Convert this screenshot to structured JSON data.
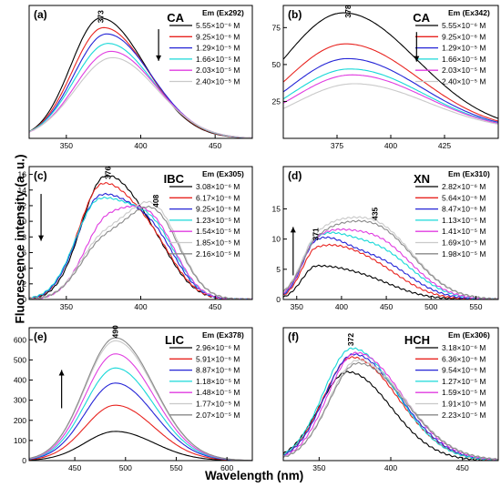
{
  "figure": {
    "ylabel": "Fluorescence intensity (a. u.)",
    "xlabel": "Wavelength (nm)"
  },
  "colors": {
    "series": [
      "#000000",
      "#e8231f",
      "#2424d6",
      "#18d8d8",
      "#e03ce0",
      "#c9c9c9",
      "#8a8a8a"
    ]
  },
  "chart_data": [
    {
      "type": "line",
      "panel": "(a)",
      "compound": "CA",
      "em_label": "Em (Ex292)",
      "xlim": [
        325,
        475
      ],
      "ylim": [
        0,
        420
      ],
      "xticks": [
        350,
        400,
        450
      ],
      "yticks": [],
      "annotations": [
        {
          "text": "373",
          "x": 373,
          "y": 385
        }
      ],
      "arrow": {
        "direction": "down",
        "x": 412,
        "y_from": 345,
        "y_to": 245
      },
      "series": [
        {
          "name": "5.55×10⁻⁶ M",
          "peak": 373,
          "amp": 380,
          "w_left": 20,
          "w_right": 30
        },
        {
          "name": "9.25×10⁻⁶ M",
          "peak": 375,
          "amp": 350,
          "w_left": 21,
          "w_right": 30
        },
        {
          "name": "1.29×10⁻⁵ M",
          "peak": 377,
          "amp": 330,
          "w_left": 22,
          "w_right": 30
        },
        {
          "name": "1.66×10⁻⁵ M",
          "peak": 378,
          "amp": 300,
          "w_left": 23,
          "w_right": 30
        },
        {
          "name": "2.03×10⁻⁵ M",
          "peak": 380,
          "amp": 275,
          "w_left": 24,
          "w_right": 30
        },
        {
          "name": "2.40×10⁻⁵ M",
          "peak": 381,
          "amp": 255,
          "w_left": 25,
          "w_right": 30
        }
      ]
    },
    {
      "type": "line",
      "panel": "(b)",
      "compound": "CA",
      "em_label": "Em (Ex342)",
      "xlim": [
        350,
        450
      ],
      "ylim": [
        0,
        90
      ],
      "xticks": [
        375,
        400,
        425
      ],
      "yticks": [
        25,
        50,
        75
      ],
      "annotations": [
        {
          "text": "378",
          "x": 380,
          "y": 86
        }
      ],
      "arrow": {
        "direction": "down",
        "x": 412,
        "y_from": 72,
        "y_to": 52
      },
      "series": [
        {
          "name": "5.55×10⁻⁶ M",
          "peak": 378,
          "amp": 80,
          "w_left": 28,
          "w_right": 34,
          "base": 5
        },
        {
          "name": "9.25×10⁻⁶ M",
          "peak": 379,
          "amp": 59,
          "w_left": 27,
          "w_right": 34,
          "base": 5
        },
        {
          "name": "1.29×10⁻⁵ M",
          "peak": 380,
          "amp": 49,
          "w_left": 27,
          "w_right": 34,
          "base": 5
        },
        {
          "name": "1.66×10⁻⁵ M",
          "peak": 381,
          "amp": 42,
          "w_left": 27,
          "w_right": 34,
          "base": 5
        },
        {
          "name": "2.03×10⁻⁵ M",
          "peak": 382,
          "amp": 38,
          "w_left": 27,
          "w_right": 34,
          "base": 5
        },
        {
          "name": "2.40×10⁻⁵ M",
          "peak": 383,
          "amp": 32,
          "w_left": 27,
          "w_right": 34,
          "base": 5
        }
      ]
    },
    {
      "type": "line",
      "panel": "(c)",
      "compound": "IBC",
      "em_label": "Em (Ex305)",
      "xlim": [
        325,
        475
      ],
      "ylim": [
        0,
        17
      ],
      "xticks": [
        350,
        400,
        450
      ],
      "yticks": [
        0,
        2,
        4,
        6,
        8,
        10,
        12,
        14,
        16
      ],
      "annotations": [
        {
          "text": "376",
          "x": 378,
          "y": 16.2
        },
        {
          "text": "408",
          "x": 410,
          "y": 12.6
        }
      ],
      "arrow": {
        "direction": "down",
        "x": 333,
        "y_from": 13.5,
        "y_to": 7.5
      },
      "series": [
        {
          "name": "3.08×10⁻⁶ M",
          "peak": 376,
          "amp": 15.5,
          "w_left": 16,
          "w_right": 24,
          "peak2": 410,
          "amp2": 3.0,
          "w2": 16
        },
        {
          "name": "6.17×10⁻⁶ M",
          "peak": 374,
          "amp": 14.5,
          "w_left": 16,
          "w_right": 24,
          "peak2": 410,
          "amp2": 4.0,
          "w2": 16
        },
        {
          "name": "9.25×10⁻⁶ M",
          "peak": 373,
          "amp": 13.0,
          "w_left": 16,
          "w_right": 24,
          "peak2": 410,
          "amp2": 5.5,
          "w2": 16
        },
        {
          "name": "1.23×10⁻⁵ M",
          "peak": 372,
          "amp": 12.5,
          "w_left": 16,
          "w_right": 24,
          "peak2": 410,
          "amp2": 6.5,
          "w2": 16
        },
        {
          "name": "1.54×10⁻⁵ M",
          "peak": 378,
          "amp": 10.0,
          "w_left": 16,
          "w_right": 22,
          "peak2": 410,
          "amp2": 7.0,
          "w2": 16
        },
        {
          "name": "1.85×10⁻⁵ M",
          "peak": 375,
          "amp": 7.5,
          "w_left": 16,
          "w_right": 20,
          "peak2": 410,
          "amp2": 10.5,
          "w2": 17
        },
        {
          "name": "2.16×10⁻⁵ M",
          "peak": 375,
          "amp": 7.0,
          "w_left": 16,
          "w_right": 20,
          "peak2": 410,
          "amp2": 10.0,
          "w2": 17
        }
      ]
    },
    {
      "type": "line",
      "panel": "(d)",
      "compound": "XN",
      "em_label": "Em (Ex310)",
      "xlim": [
        335,
        575
      ],
      "ylim": [
        0,
        22
      ],
      "xticks": [
        350,
        400,
        450,
        500,
        550
      ],
      "yticks": [
        0,
        5,
        10,
        15
      ],
      "annotations": [
        {
          "text": "371",
          "x": 371,
          "y": 10.8
        },
        {
          "text": "435",
          "x": 437,
          "y": 14.2
        }
      ],
      "arrow": {
        "direction": "up",
        "x": 346,
        "y_from": 4,
        "y_to": 12
      },
      "series": [
        {
          "name": "2.82×10⁻⁶ M",
          "peak": 372,
          "amp": 5.5,
          "w_left": 16,
          "w_right": 55,
          "peak2": 440,
          "amp2": 0.8,
          "w2": 30
        },
        {
          "name": "5.64×10⁻⁶ M",
          "peak": 372,
          "amp": 7.5,
          "w_left": 16,
          "w_right": 40,
          "peak2": 435,
          "amp2": 4.5,
          "w2": 38
        },
        {
          "name": "8.47×10⁻⁶ M",
          "peak": 372,
          "amp": 8.0,
          "w_left": 16,
          "w_right": 30,
          "peak2": 435,
          "amp2": 6.5,
          "w2": 40
        },
        {
          "name": "1.13×10⁻⁵ M",
          "peak": 372,
          "amp": 7.5,
          "w_left": 16,
          "w_right": 30,
          "peak2": 435,
          "amp2": 8.5,
          "w2": 42
        },
        {
          "name": "1.41×10⁻⁵ M",
          "peak": 372,
          "amp": 7.0,
          "w_left": 16,
          "w_right": 30,
          "peak2": 435,
          "amp2": 10.0,
          "w2": 42
        },
        {
          "name": "1.69×10⁻⁵ M",
          "peak": 372,
          "amp": 6.5,
          "w_left": 16,
          "w_right": 30,
          "peak2": 435,
          "amp2": 12.5,
          "w2": 44
        },
        {
          "name": "1.98×10⁻⁵ M",
          "peak": 372,
          "amp": 6.0,
          "w_left": 16,
          "w_right": 30,
          "peak2": 435,
          "amp2": 12.0,
          "w2": 44
        }
      ]
    },
    {
      "type": "line",
      "panel": "(e)",
      "compound": "LIC",
      "em_label": "Em (Ex378)",
      "xlim": [
        405,
        625
      ],
      "ylim": [
        0,
        660
      ],
      "xticks": [
        450,
        500,
        550,
        600
      ],
      "yticks": [
        0,
        100,
        200,
        300,
        400,
        500,
        600
      ],
      "annotations": [
        {
          "text": "490",
          "x": 490,
          "y": 640
        }
      ],
      "arrow": {
        "direction": "up",
        "x": 437,
        "y_from": 260,
        "y_to": 450
      },
      "series": [
        {
          "name": "2.96×10⁻⁶ M",
          "peak": 490,
          "amp": 145,
          "w_left": 30,
          "w_right": 38
        },
        {
          "name": "5.91×10⁻⁶ M",
          "peak": 490,
          "amp": 275,
          "w_left": 30,
          "w_right": 38
        },
        {
          "name": "8.87×10⁻⁶ M",
          "peak": 490,
          "amp": 385,
          "w_left": 30,
          "w_right": 38
        },
        {
          "name": "1.18×10⁻⁵ M",
          "peak": 490,
          "amp": 460,
          "w_left": 30,
          "w_right": 38
        },
        {
          "name": "1.48×10⁻⁵ M",
          "peak": 490,
          "amp": 530,
          "w_left": 30,
          "w_right": 38
        },
        {
          "name": "1.77×10⁻⁵ M",
          "peak": 490,
          "amp": 595,
          "w_left": 30,
          "w_right": 38
        },
        {
          "name": "2.07×10⁻⁵ M",
          "peak": 490,
          "amp": 610,
          "w_left": 30,
          "w_right": 38
        }
      ]
    },
    {
      "type": "line",
      "panel": "(f)",
      "compound": "HCH",
      "em_label": "Em (Ex306)",
      "xlim": [
        325,
        475
      ],
      "ylim": [
        0,
        90
      ],
      "xticks": [
        350,
        400,
        450
      ],
      "yticks": [],
      "annotations": [
        {
          "text": "372",
          "x": 372,
          "y": 82
        }
      ],
      "series": [
        {
          "name": "3.18×10⁻⁶ M",
          "peak": 370,
          "amp": 60,
          "w_left": 20,
          "w_right": 30
        },
        {
          "name": "6.36×10⁻⁶ M",
          "peak": 373,
          "amp": 70,
          "w_left": 20,
          "w_right": 32
        },
        {
          "name": "9.54×10⁻⁶ M",
          "peak": 374,
          "amp": 72,
          "w_left": 20,
          "w_right": 32
        },
        {
          "name": "1.27×10⁻⁵ M",
          "peak": 373,
          "amp": 76,
          "w_left": 20,
          "w_right": 31
        },
        {
          "name": "1.59×10⁻⁵ M",
          "peak": 376,
          "amp": 73,
          "w_left": 20,
          "w_right": 32
        },
        {
          "name": "1.91×10⁻⁵ M",
          "peak": 377,
          "amp": 68,
          "w_left": 20,
          "w_right": 33
        },
        {
          "name": "2.23×10⁻⁵ M",
          "peak": 377,
          "amp": 66,
          "w_left": 20,
          "w_right": 33
        }
      ]
    }
  ]
}
